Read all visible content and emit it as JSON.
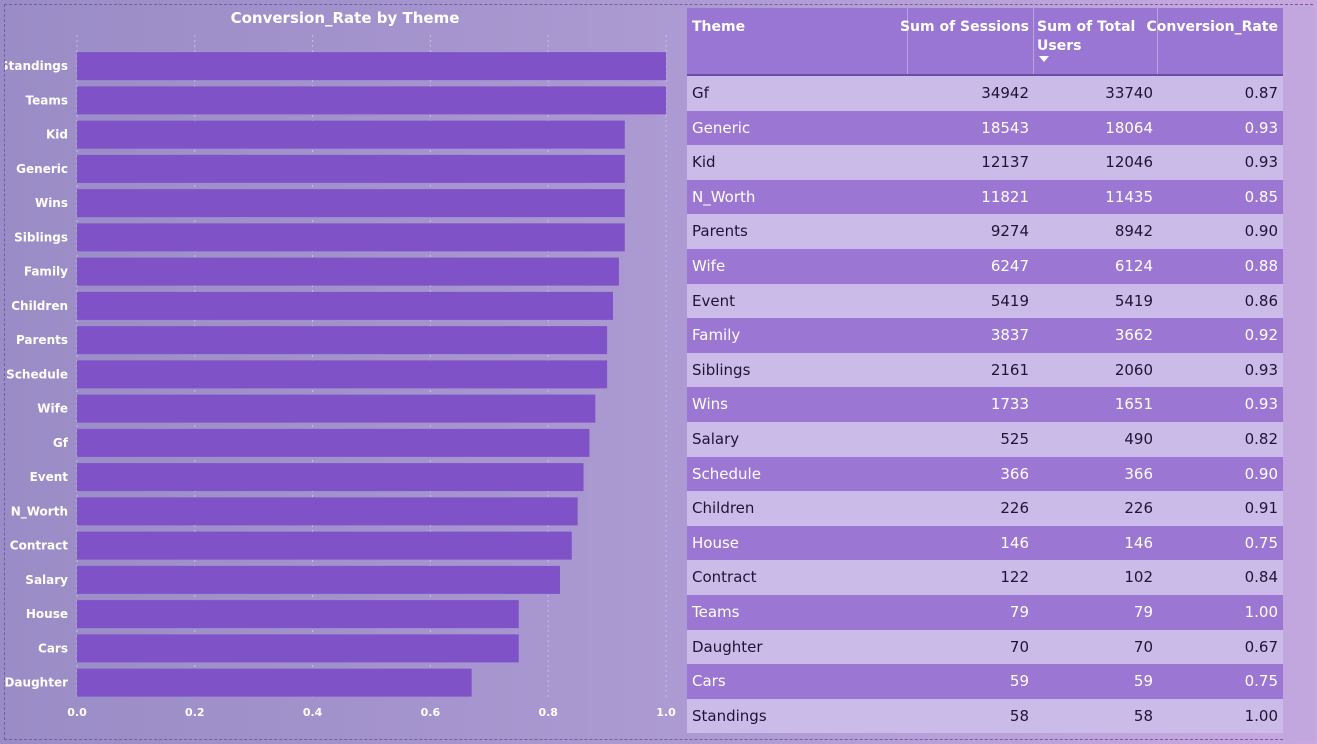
{
  "chart_data": {
    "type": "bar",
    "orientation": "horizontal",
    "title": "Conversion_Rate by Theme",
    "xlabel": "",
    "ylabel": "",
    "xlim": [
      0,
      1.0
    ],
    "xticks": [
      "0.0",
      "0.2",
      "0.4",
      "0.6",
      "0.8",
      "1.0"
    ],
    "grid": true,
    "bar_color": "#7f52c7",
    "categories": [
      "Standings",
      "Teams",
      "Kid",
      "Generic",
      "Wins",
      "Siblings",
      "Family",
      "Children",
      "Parents",
      "Schedule",
      "Wife",
      "Gf",
      "Event",
      "N_Worth",
      "Contract",
      "Salary",
      "House",
      "Cars",
      "Daughter"
    ],
    "values": [
      1.0,
      1.0,
      0.93,
      0.93,
      0.93,
      0.93,
      0.92,
      0.91,
      0.9,
      0.9,
      0.88,
      0.87,
      0.86,
      0.85,
      0.84,
      0.82,
      0.75,
      0.75,
      0.67
    ]
  },
  "table": {
    "headers": {
      "theme": "Theme",
      "sessions": "Sum of Sessions",
      "users_line1": "Sum of Total",
      "users_line2": "Users",
      "conversion": "Conversion_Rate"
    },
    "sort_indicator": "sort-descending-icon",
    "rows": [
      [
        "Gf",
        "34942",
        "33740",
        "0.87"
      ],
      [
        "Generic",
        "18543",
        "18064",
        "0.93"
      ],
      [
        "Kid",
        "12137",
        "12046",
        "0.93"
      ],
      [
        "N_Worth",
        "11821",
        "11435",
        "0.85"
      ],
      [
        "Parents",
        "9274",
        "8942",
        "0.90"
      ],
      [
        "Wife",
        "6247",
        "6124",
        "0.88"
      ],
      [
        "Event",
        "5419",
        "5419",
        "0.86"
      ],
      [
        "Family",
        "3837",
        "3662",
        "0.92"
      ],
      [
        "Siblings",
        "2161",
        "2060",
        "0.93"
      ],
      [
        "Wins",
        "1733",
        "1651",
        "0.93"
      ],
      [
        "Salary",
        "525",
        "490",
        "0.82"
      ],
      [
        "Schedule",
        "366",
        "366",
        "0.90"
      ],
      [
        "Children",
        "226",
        "226",
        "0.91"
      ],
      [
        "House",
        "146",
        "146",
        "0.75"
      ],
      [
        "Contract",
        "122",
        "102",
        "0.84"
      ],
      [
        "Teams",
        "79",
        "79",
        "1.00"
      ],
      [
        "Daughter",
        "70",
        "70",
        "0.67"
      ],
      [
        "Cars",
        "59",
        "59",
        "0.75"
      ],
      [
        "Standings",
        "58",
        "58",
        "1.00"
      ]
    ]
  }
}
